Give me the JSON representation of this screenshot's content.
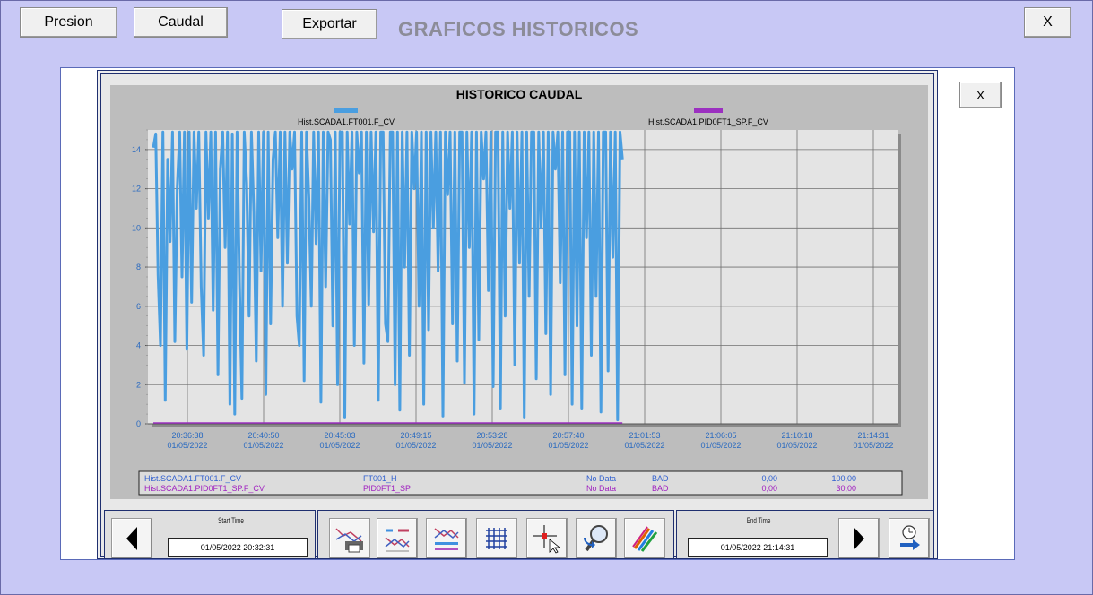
{
  "toolbar": {
    "presion_label": "Presion",
    "caudal_label": "Caudal",
    "exportar_label": "Exportar",
    "title": "GRAFICOS HISTORICOS",
    "close_label": "X"
  },
  "panel": {
    "close_label": "X"
  },
  "chart_data": {
    "type": "line",
    "title": "HISTORICO CAUDAL",
    "ylim": [
      0,
      15
    ],
    "y_ticks": [
      "0",
      "2",
      "4",
      "6",
      "8",
      "10",
      "12",
      "14"
    ],
    "x_ticks": [
      {
        "time": "20:36:38",
        "date": "01/05/2022"
      },
      {
        "time": "20:40:50",
        "date": "01/05/2022"
      },
      {
        "time": "20:45:03",
        "date": "01/05/2022"
      },
      {
        "time": "20:49:15",
        "date": "01/05/2022"
      },
      {
        "time": "20:53:28",
        "date": "01/05/2022"
      },
      {
        "time": "20:57:40",
        "date": "01/05/2022"
      },
      {
        "time": "21:01:53",
        "date": "01/05/2022"
      },
      {
        "time": "21:06:05",
        "date": "01/05/2022"
      },
      {
        "time": "21:10:18",
        "date": "01/05/2022"
      },
      {
        "time": "21:14:31",
        "date": "01/05/2022"
      }
    ],
    "grid": true,
    "series": [
      {
        "name": "Hist.SCADA1.FT001.F_CV",
        "color": "#4a9ee0",
        "values": [
          14.1,
          14.8,
          7.6,
          4.0,
          14.9,
          1.2,
          13.5,
          9.3,
          14.9,
          4.2,
          12.1,
          14.9,
          7.5,
          14.9,
          3.8,
          14.9,
          6.2,
          14.9,
          11.0,
          14.9,
          7.0,
          3.5,
          14.9,
          10.5,
          14.9,
          5.8,
          14.9,
          2.5,
          13.0,
          14.9,
          9.0,
          14.9,
          1.0,
          14.8,
          0.5,
          14.9,
          7.2,
          1.3,
          14.9,
          12.3,
          5.5,
          14.9,
          10.8,
          3.2,
          14.9,
          7.8,
          14.9,
          1.5,
          14.9,
          5.1,
          13.5,
          14.9,
          9.5,
          14.9,
          6.0,
          14.9,
          8.2,
          14.9,
          13.0,
          14.9,
          5.5,
          4.0,
          14.9,
          2.2,
          14.9,
          11.5,
          6.0,
          14.9,
          9.2,
          14.9,
          1.1,
          14.9,
          7.0,
          14.9,
          14.5,
          5.0,
          14.9,
          2.0,
          14.9,
          14.9,
          0.3,
          14.9,
          10.2,
          14.9,
          4.0,
          14.9,
          12.8,
          14.9,
          3.1,
          14.9,
          6.1,
          14.9,
          9.8,
          14.9,
          1.2,
          14.9,
          14.9,
          5.1,
          4.2,
          14.9,
          14.9,
          2.0,
          14.9,
          0.7,
          14.9,
          8.0,
          14.9,
          3.5,
          14.9,
          12.0,
          14.9,
          6.0,
          14.9,
          1.0,
          14.9,
          4.8,
          14.9,
          10.0,
          14.9,
          7.8,
          14.9,
          0.4,
          14.9,
          11.7,
          14.9,
          5.1,
          14.9,
          3.2,
          14.9,
          14.9,
          2.1,
          14.9,
          9.0,
          14.9,
          0.5,
          14.9,
          4.3,
          14.9,
          12.5,
          14.9,
          6.8,
          14.9,
          1.9,
          14.9,
          14.9,
          0.8,
          14.9,
          5.5,
          14.9,
          11.0,
          14.9,
          3.0,
          14.9,
          8.2,
          14.9,
          0.3,
          14.9,
          6.5,
          14.9,
          14.9,
          2.3,
          14.9,
          10.0,
          14.9,
          4.6,
          14.9,
          1.5,
          14.9,
          13.0,
          14.9,
          7.2,
          14.9,
          2.5,
          14.9,
          14.9,
          1.0,
          14.9,
          5.0,
          14.9,
          0.8,
          14.9,
          9.5,
          14.9,
          3.5,
          14.9,
          6.5,
          14.9,
          0.6,
          14.9,
          14.9,
          2.7,
          14.9,
          8.5,
          14.9,
          0.2,
          14.9,
          13.5
        ]
      },
      {
        "name": "Hist.SCADA1.PID0FT1_SP.F_CV",
        "color": "#9b30c0",
        "values": [
          0,
          0
        ]
      }
    ],
    "data_fraction": 0.633
  },
  "legend_table": [
    {
      "name": "Hist.SCADA1.FT001.F_CV",
      "tag": "FT001_H",
      "value": "No Data",
      "quality": "BAD",
      "min": "0,00",
      "max": "100,00",
      "color": "#2f5fd0"
    },
    {
      "name": "Hist.SCADA1.PID0FT1_SP.F_CV",
      "tag": "PID0FT1_SP",
      "value": "No Data",
      "quality": "BAD",
      "min": "0,00",
      "max": "30,00",
      "color": "#a020c0"
    }
  ],
  "bottom": {
    "start_label": "Start Time",
    "start_value": "01/05/2022 20:32:31",
    "end_label": "End Time",
    "end_value": "01/05/2022 21:14:31"
  }
}
